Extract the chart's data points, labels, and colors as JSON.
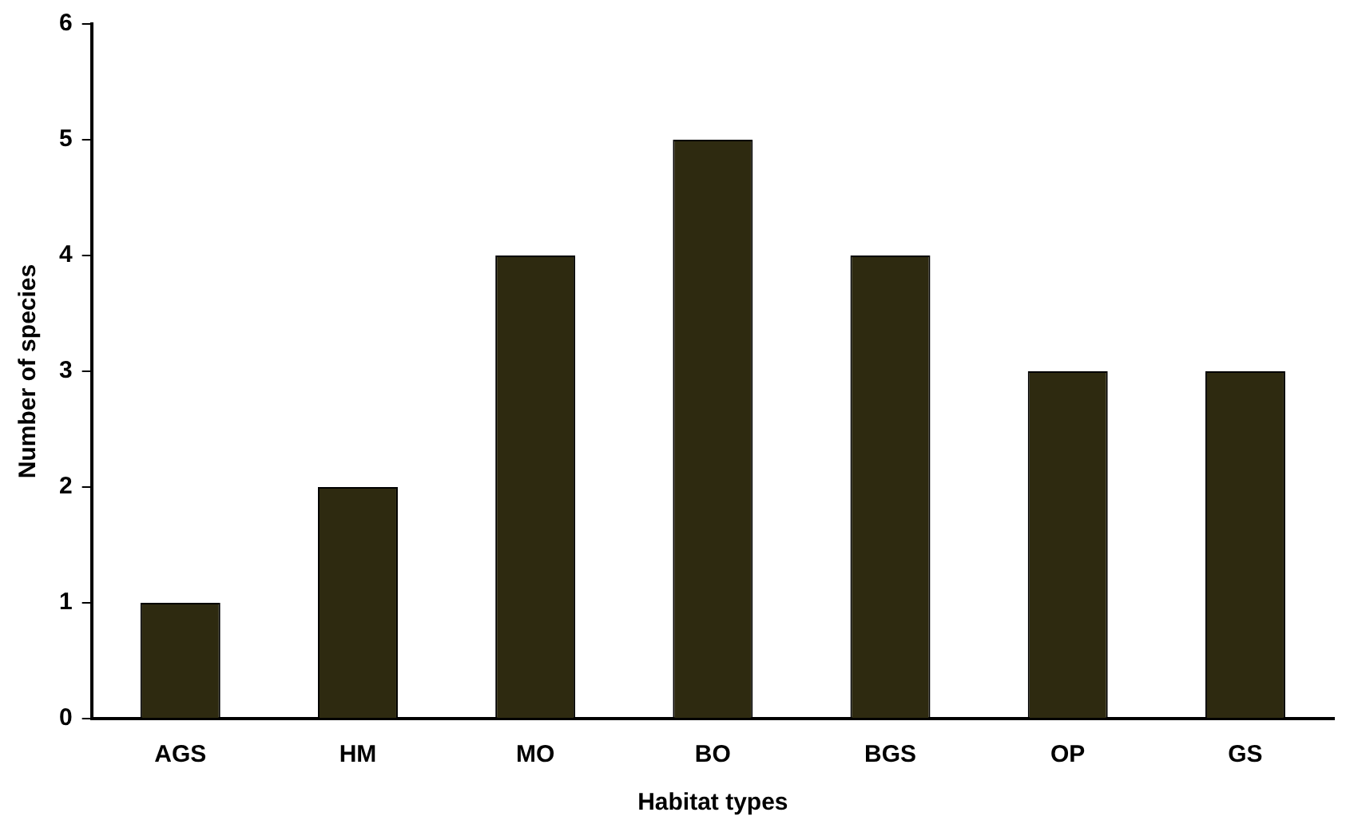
{
  "chart_data": {
    "type": "bar",
    "xlabel": "Habitat types",
    "ylabel": "Number of species",
    "categories": [
      "AGS",
      "HM",
      "MO",
      "BO",
      "BGS",
      "OP",
      "GS"
    ],
    "values": [
      1,
      2,
      4,
      5,
      4,
      3,
      3
    ],
    "color": "#2e2a10",
    "ylim": [
      0,
      6
    ],
    "yticks": [
      0,
      1,
      2,
      3,
      4,
      5,
      6
    ],
    "grid": false,
    "legend": false
  }
}
